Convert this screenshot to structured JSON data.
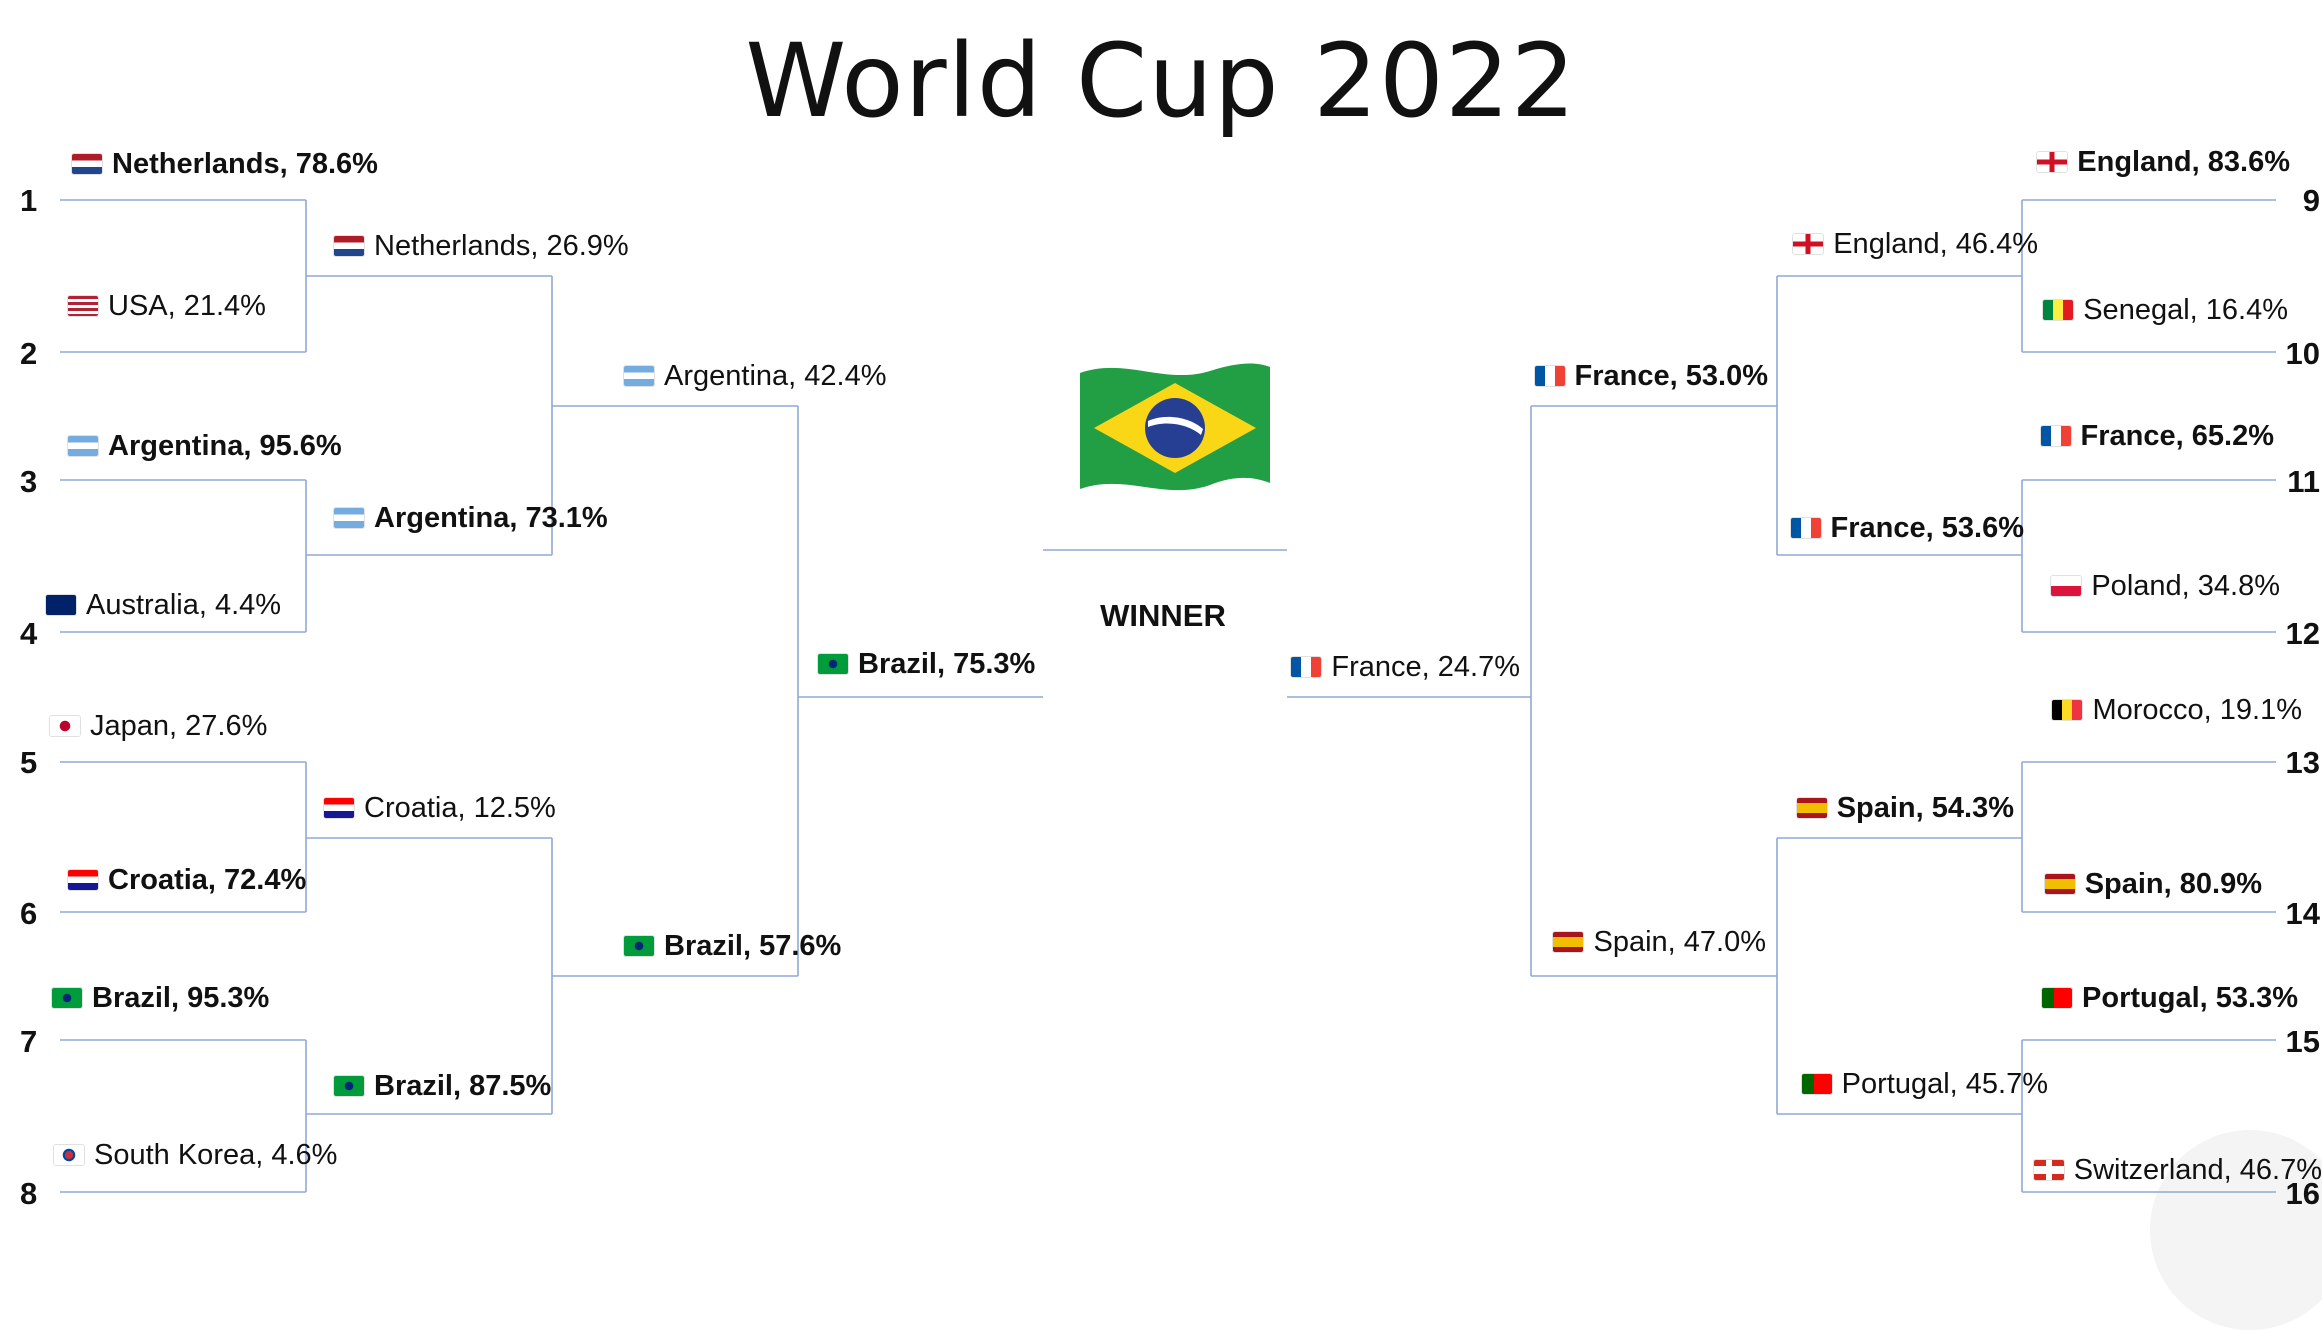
{
  "title": "World Cup 2022",
  "winner_label": "WINNER",
  "winner_flag": "flag-brazil",
  "seeds": [
    "1",
    "2",
    "3",
    "4",
    "5",
    "6",
    "7",
    "8",
    "9",
    "10",
    "11",
    "12",
    "13",
    "14",
    "15",
    "16"
  ],
  "left": {
    "r16": [
      {
        "team": "Netherlands, 78.6%",
        "flag": "nl",
        "bold": true
      },
      {
        "team": "USA, 21.4%",
        "flag": "us",
        "bold": false
      },
      {
        "team": "Argentina, 95.6%",
        "flag": "ar",
        "bold": true
      },
      {
        "team": "Australia, 4.4%",
        "flag": "au",
        "bold": false
      },
      {
        "team": "Japan, 27.6%",
        "flag": "jp",
        "bold": false
      },
      {
        "team": "Croatia, 72.4%",
        "flag": "hr",
        "bold": true
      },
      {
        "team": "Brazil, 95.3%",
        "flag": "br",
        "bold": true
      },
      {
        "team": "South Korea, 4.6%",
        "flag": "kr",
        "bold": false
      }
    ],
    "qf": [
      {
        "team": "Netherlands, 26.9%",
        "flag": "nl",
        "bold": false
      },
      {
        "team": "Argentina, 73.1%",
        "flag": "ar",
        "bold": true
      },
      {
        "team": "Croatia, 12.5%",
        "flag": "hr",
        "bold": false
      },
      {
        "team": "Brazil, 87.5%",
        "flag": "br",
        "bold": true
      }
    ],
    "sf": [
      {
        "team": "Argentina, 42.4%",
        "flag": "ar",
        "bold": false
      },
      {
        "team": "Brazil, 57.6%",
        "flag": "br",
        "bold": true
      }
    ],
    "final": {
      "team": "Brazil, 75.3%",
      "flag": "br",
      "bold": true
    }
  },
  "right": {
    "r16": [
      {
        "team": "England, 83.6%",
        "flag": "en",
        "bold": true
      },
      {
        "team": "Senegal, 16.4%",
        "flag": "sn",
        "bold": false
      },
      {
        "team": "France, 65.2%",
        "flag": "fr",
        "bold": true
      },
      {
        "team": "Poland, 34.8%",
        "flag": "pl",
        "bold": false
      },
      {
        "team": "Morocco, 19.1%",
        "flag": "ma",
        "bold": false
      },
      {
        "team": "Spain, 80.9%",
        "flag": "es",
        "bold": true
      },
      {
        "team": "Portugal, 53.3%",
        "flag": "pt",
        "bold": true
      },
      {
        "team": "Switzerland, 46.7%",
        "flag": "ch",
        "bold": false
      }
    ],
    "qf": [
      {
        "team": "England, 46.4%",
        "flag": "en",
        "bold": false
      },
      {
        "team": "France, 53.6%",
        "flag": "fr",
        "bold": true
      },
      {
        "team": "Spain, 54.3%",
        "flag": "es",
        "bold": true
      },
      {
        "team": "Portugal, 45.7%",
        "flag": "pt",
        "bold": false
      }
    ],
    "sf": [
      {
        "team": "France, 53.0%",
        "flag": "fr",
        "bold": true
      },
      {
        "team": "Spain, 47.0%",
        "flag": "es",
        "bold": false
      }
    ],
    "final": {
      "team": "France, 24.7%",
      "flag": "fr",
      "bold": false
    }
  },
  "colors": {
    "line": "#8fa9d6",
    "text": "#111111"
  }
}
